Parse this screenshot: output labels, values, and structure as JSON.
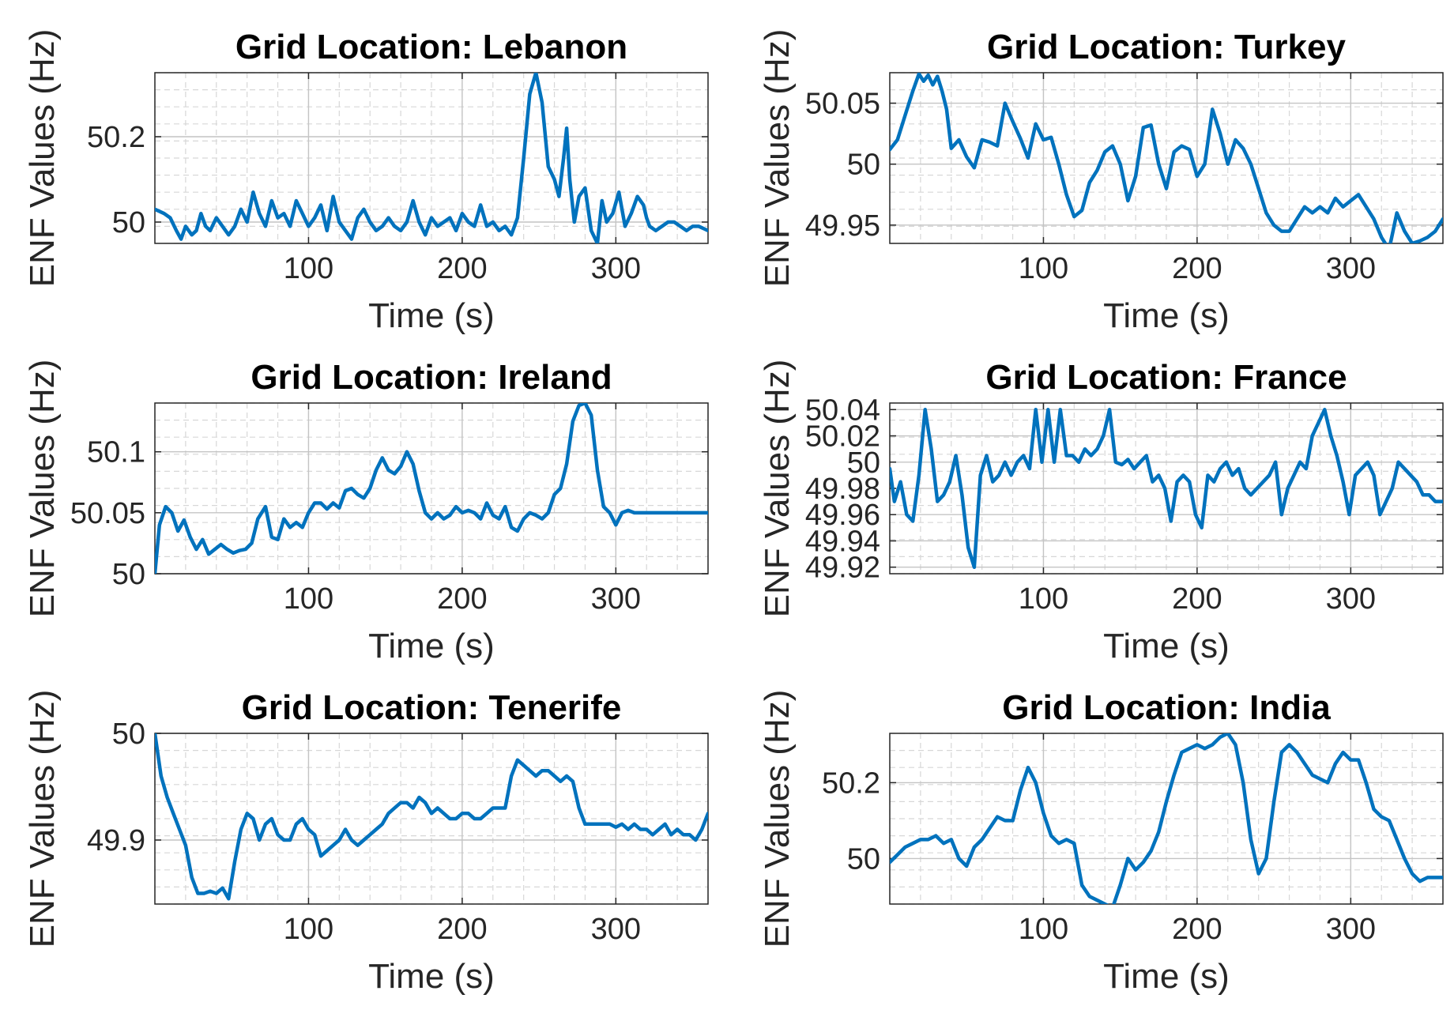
{
  "colors": {
    "line": "#0072BD",
    "grid": "#d7d7d7",
    "axis": "#262626"
  },
  "chart_data": [
    {
      "type": "line",
      "title": "Grid Location: Lebanon",
      "xlabel": "Time (s)",
      "ylabel": "ENF Values (Hz)",
      "xlim": [
        0,
        360
      ],
      "ylim": [
        49.95,
        50.35
      ],
      "xticks": [
        100,
        200,
        300
      ],
      "xtick_labels": [
        "100",
        "200",
        "300"
      ],
      "yticks": [
        50,
        50.2
      ],
      "ytick_labels": [
        "50",
        "50.2"
      ],
      "grid": true,
      "x": [
        0,
        6,
        10,
        14,
        17,
        20,
        24,
        27,
        30,
        33,
        36,
        40,
        44,
        48,
        52,
        56,
        60,
        64,
        68,
        72,
        76,
        80,
        84,
        88,
        92,
        96,
        100,
        104,
        108,
        112,
        116,
        120,
        124,
        128,
        132,
        136,
        140,
        144,
        148,
        152,
        156,
        160,
        164,
        168,
        172,
        176,
        180,
        184,
        188,
        192,
        196,
        200,
        204,
        208,
        212,
        216,
        220,
        224,
        228,
        232,
        236,
        240,
        244,
        248,
        252,
        256,
        260,
        263,
        266,
        268,
        270,
        273,
        276,
        280,
        284,
        288,
        291,
        294,
        298,
        302,
        306,
        310,
        314,
        318,
        320,
        322,
        326,
        330,
        334,
        338,
        342,
        346,
        350,
        354,
        360
      ],
      "values": [
        50.03,
        50.02,
        50.01,
        49.98,
        49.96,
        49.99,
        49.97,
        49.98,
        50.02,
        49.99,
        49.98,
        50.01,
        49.99,
        49.97,
        49.99,
        50.03,
        50.0,
        50.07,
        50.02,
        49.99,
        50.05,
        50.01,
        50.02,
        49.99,
        50.05,
        50.02,
        49.99,
        50.01,
        50.04,
        49.98,
        50.06,
        50.0,
        49.98,
        49.96,
        50.01,
        50.03,
        50.0,
        49.98,
        49.99,
        50.01,
        49.99,
        49.98,
        50.0,
        50.05,
        50.0,
        49.97,
        50.01,
        49.99,
        50.0,
        50.01,
        49.98,
        50.02,
        50.0,
        49.99,
        50.04,
        49.99,
        50.0,
        49.98,
        49.99,
        49.97,
        50.01,
        50.15,
        50.3,
        50.35,
        50.28,
        50.13,
        50.1,
        50.06,
        50.15,
        50.22,
        50.1,
        50.0,
        50.06,
        50.08,
        49.98,
        49.95,
        50.05,
        50.0,
        50.02,
        50.07,
        49.99,
        50.02,
        50.06,
        50.04,
        50.01,
        49.99,
        49.98,
        49.99,
        50.0,
        50.0,
        49.99,
        49.98,
        49.99,
        49.99,
        49.98
      ]
    },
    {
      "type": "line",
      "title": "Grid Location: Turkey",
      "xlabel": "Time (s)",
      "ylabel": "ENF Values (Hz)",
      "xlim": [
        0,
        360
      ],
      "ylim": [
        49.935,
        50.075
      ],
      "xticks": [
        100,
        200,
        300
      ],
      "xtick_labels": [
        "100",
        "200",
        "300"
      ],
      "yticks": [
        49.95,
        50,
        50.05
      ],
      "ytick_labels": [
        "49.95",
        "50",
        "50.05"
      ],
      "grid": true,
      "x": [
        0,
        5,
        10,
        15,
        19,
        22,
        25,
        28,
        31,
        34,
        37,
        40,
        45,
        50,
        55,
        60,
        65,
        70,
        75,
        80,
        85,
        90,
        95,
        100,
        105,
        110,
        115,
        120,
        125,
        130,
        135,
        140,
        145,
        150,
        155,
        160,
        165,
        170,
        175,
        180,
        185,
        190,
        195,
        200,
        205,
        210,
        215,
        220,
        225,
        230,
        235,
        240,
        245,
        250,
        255,
        260,
        265,
        270,
        275,
        280,
        285,
        290,
        295,
        300,
        305,
        310,
        315,
        320,
        325,
        330,
        335,
        340,
        345,
        350,
        355,
        360
      ],
      "values": [
        50.012,
        50.02,
        50.04,
        50.06,
        50.074,
        50.068,
        50.073,
        50.065,
        50.072,
        50.06,
        50.045,
        50.013,
        50.02,
        50.006,
        49.997,
        50.02,
        50.018,
        50.015,
        50.05,
        50.035,
        50.021,
        50.005,
        50.033,
        50.02,
        50.022,
        50.0,
        49.975,
        49.957,
        49.962,
        49.985,
        49.995,
        50.01,
        50.015,
        50.0,
        49.97,
        49.99,
        50.03,
        50.032,
        50.0,
        49.98,
        50.01,
        50.015,
        50.012,
        49.99,
        50.0,
        50.045,
        50.025,
        50.0,
        50.02,
        50.013,
        50.0,
        49.98,
        49.96,
        49.95,
        49.945,
        49.945,
        49.955,
        49.965,
        49.96,
        49.965,
        49.96,
        49.972,
        49.965,
        49.97,
        49.975,
        49.965,
        49.955,
        49.94,
        49.93,
        49.96,
        49.945,
        49.935,
        49.937,
        49.94,
        49.945,
        49.955
      ]
    },
    {
      "type": "line",
      "title": "Grid Location: Ireland",
      "xlabel": "Time (s)",
      "ylabel": "ENF Values (Hz)",
      "xlim": [
        0,
        360
      ],
      "ylim": [
        50.0,
        50.14
      ],
      "xticks": [
        100,
        200,
        300
      ],
      "xtick_labels": [
        "100",
        "200",
        "300"
      ],
      "yticks": [
        50,
        50.05,
        50.1
      ],
      "ytick_labels": [
        "50",
        "50.05",
        "50.1"
      ],
      "grid": true,
      "x": [
        0,
        3,
        7,
        11,
        15,
        19,
        23,
        27,
        31,
        35,
        39,
        43,
        47,
        51,
        55,
        59,
        63,
        67,
        72,
        76,
        80,
        84,
        88,
        92,
        96,
        100,
        104,
        108,
        112,
        116,
        120,
        124,
        128,
        132,
        136,
        140,
        144,
        148,
        152,
        156,
        160,
        164,
        168,
        172,
        176,
        180,
        184,
        188,
        192,
        196,
        200,
        204,
        208,
        212,
        216,
        220,
        224,
        228,
        232,
        236,
        240,
        244,
        248,
        252,
        256,
        260,
        264,
        268,
        272,
        276,
        280,
        284,
        288,
        292,
        296,
        300,
        304,
        308,
        312,
        316,
        320,
        324,
        328,
        332,
        336,
        340,
        344,
        348,
        352,
        356,
        360
      ],
      "values": [
        50.0,
        50.04,
        50.055,
        50.05,
        50.035,
        50.044,
        50.03,
        50.02,
        50.028,
        50.016,
        50.02,
        50.024,
        50.02,
        50.017,
        50.019,
        50.02,
        50.025,
        50.045,
        50.055,
        50.03,
        50.028,
        50.045,
        50.038,
        50.042,
        50.038,
        50.05,
        50.058,
        50.058,
        50.053,
        50.058,
        50.054,
        50.068,
        50.07,
        50.065,
        50.062,
        50.07,
        50.085,
        50.095,
        50.085,
        50.082,
        50.088,
        50.1,
        50.09,
        50.068,
        50.05,
        50.045,
        50.05,
        50.045,
        50.048,
        50.055,
        50.05,
        50.052,
        50.05,
        50.045,
        50.058,
        50.048,
        50.045,
        50.055,
        50.038,
        50.035,
        50.045,
        50.05,
        50.048,
        50.045,
        50.05,
        50.065,
        50.07,
        50.09,
        50.125,
        50.138,
        50.14,
        50.13,
        50.085,
        50.055,
        50.05,
        50.04,
        50.05,
        50.052,
        50.05,
        50.05,
        50.05,
        50.05,
        50.05,
        50.05,
        50.05,
        50.05,
        50.05,
        50.05,
        50.05,
        50.05,
        50.05
      ]
    },
    {
      "type": "line",
      "title": "Grid Location: France",
      "xlabel": "Time (s)",
      "ylabel": "ENF Values (Hz)",
      "xlim": [
        0,
        360
      ],
      "ylim": [
        49.915,
        50.045
      ],
      "xticks": [
        100,
        200,
        300
      ],
      "xtick_labels": [
        "100",
        "200",
        "300"
      ],
      "yticks": [
        49.92,
        49.94,
        49.96,
        49.98,
        50,
        50.02,
        50.04
      ],
      "ytick_labels": [
        "49.92",
        "49.94",
        "49.96",
        "49.98",
        "50",
        "50.02",
        "50.04"
      ],
      "grid": true,
      "x": [
        0,
        3,
        7,
        11,
        15,
        19,
        23,
        27,
        31,
        35,
        39,
        43,
        47,
        51,
        55,
        59,
        63,
        67,
        71,
        75,
        79,
        83,
        87,
        91,
        95,
        99,
        103,
        107,
        111,
        115,
        119,
        123,
        127,
        131,
        135,
        139,
        143,
        147,
        151,
        155,
        159,
        163,
        167,
        171,
        175,
        179,
        183,
        187,
        191,
        195,
        199,
        203,
        207,
        211,
        215,
        219,
        223,
        227,
        231,
        235,
        239,
        243,
        247,
        251,
        255,
        259,
        263,
        267,
        271,
        275,
        279,
        283,
        287,
        291,
        295,
        299,
        303,
        307,
        311,
        315,
        319,
        323,
        327,
        331,
        335,
        339,
        343,
        347,
        351,
        355,
        360
      ],
      "values": [
        49.995,
        49.97,
        49.985,
        49.96,
        49.955,
        49.99,
        50.04,
        50.01,
        49.97,
        49.975,
        49.985,
        50.005,
        49.975,
        49.935,
        49.92,
        49.99,
        50.005,
        49.985,
        49.99,
        50.0,
        49.99,
        50.0,
        50.005,
        49.995,
        50.04,
        50.0,
        50.04,
        50.0,
        50.04,
        50.005,
        50.005,
        50.0,
        50.01,
        50.005,
        50.01,
        50.02,
        50.04,
        50.0,
        49.998,
        50.002,
        49.995,
        50.0,
        50.005,
        49.985,
        49.99,
        49.98,
        49.955,
        49.985,
        49.99,
        49.985,
        49.96,
        49.95,
        49.99,
        49.985,
        49.995,
        50.0,
        49.99,
        49.995,
        49.98,
        49.975,
        49.98,
        49.985,
        49.99,
        50.0,
        49.96,
        49.98,
        49.99,
        50.0,
        49.995,
        50.02,
        50.03,
        50.04,
        50.02,
        50.005,
        49.985,
        49.96,
        49.99,
        49.995,
        50.0,
        49.99,
        49.96,
        49.97,
        49.98,
        50.0,
        49.995,
        49.99,
        49.985,
        49.975,
        49.975,
        49.97,
        49.97
      ]
    },
    {
      "type": "line",
      "title": "Grid Location: Tenerife",
      "xlabel": "Time (s)",
      "ylabel": "ENF Values (Hz)",
      "xlim": [
        0,
        360
      ],
      "ylim": [
        49.84,
        50.0
      ],
      "xticks": [
        100,
        200,
        300
      ],
      "xtick_labels": [
        "100",
        "200",
        "300"
      ],
      "yticks": [
        49.9,
        50
      ],
      "ytick_labels": [
        "49.9",
        "50"
      ],
      "grid": true,
      "x": [
        0,
        4,
        8,
        12,
        16,
        20,
        24,
        28,
        32,
        36,
        40,
        44,
        48,
        52,
        56,
        60,
        64,
        68,
        72,
        76,
        80,
        84,
        88,
        92,
        96,
        100,
        104,
        108,
        112,
        116,
        120,
        124,
        128,
        132,
        136,
        140,
        144,
        148,
        152,
        156,
        160,
        164,
        168,
        172,
        176,
        180,
        184,
        188,
        192,
        196,
        200,
        204,
        208,
        212,
        216,
        220,
        224,
        228,
        232,
        236,
        240,
        244,
        248,
        252,
        256,
        260,
        264,
        268,
        272,
        276,
        280,
        284,
        288,
        292,
        296,
        300,
        304,
        308,
        312,
        316,
        320,
        324,
        328,
        332,
        336,
        340,
        344,
        348,
        352,
        356,
        360
      ],
      "values": [
        50.0,
        49.96,
        49.94,
        49.925,
        49.91,
        49.895,
        49.865,
        49.85,
        49.85,
        49.852,
        49.85,
        49.855,
        49.845,
        49.88,
        49.91,
        49.925,
        49.92,
        49.9,
        49.915,
        49.92,
        49.905,
        49.9,
        49.9,
        49.915,
        49.92,
        49.91,
        49.905,
        49.885,
        49.89,
        49.895,
        49.9,
        49.91,
        49.9,
        49.895,
        49.9,
        49.905,
        49.91,
        49.915,
        49.925,
        49.93,
        49.935,
        49.935,
        49.93,
        49.94,
        49.935,
        49.925,
        49.93,
        49.925,
        49.92,
        49.92,
        49.925,
        49.925,
        49.92,
        49.92,
        49.925,
        49.93,
        49.93,
        49.93,
        49.96,
        49.975,
        49.97,
        49.965,
        49.96,
        49.965,
        49.965,
        49.96,
        49.955,
        49.96,
        49.955,
        49.93,
        49.915,
        49.915,
        49.915,
        49.915,
        49.915,
        49.912,
        49.915,
        49.91,
        49.915,
        49.91,
        49.91,
        49.905,
        49.91,
        49.915,
        49.905,
        49.91,
        49.905,
        49.905,
        49.9,
        49.91,
        49.925
      ]
    },
    {
      "type": "line",
      "title": "Grid Location: India",
      "xlabel": "Time (s)",
      "ylabel": "ENF Values (Hz)",
      "xlim": [
        0,
        360
      ],
      "ylim": [
        49.88,
        50.33
      ],
      "xticks": [
        100,
        200,
        300
      ],
      "xtick_labels": [
        "100",
        "200",
        "300"
      ],
      "yticks": [
        50,
        50.2
      ],
      "ytick_labels": [
        "50",
        "50.2"
      ],
      "grid": true,
      "x": [
        0,
        5,
        10,
        15,
        20,
        25,
        30,
        35,
        40,
        45,
        50,
        55,
        60,
        65,
        70,
        75,
        80,
        85,
        90,
        95,
        100,
        105,
        110,
        115,
        120,
        125,
        130,
        135,
        140,
        145,
        150,
        155,
        160,
        165,
        170,
        175,
        180,
        185,
        190,
        195,
        200,
        205,
        210,
        215,
        220,
        225,
        230,
        235,
        240,
        245,
        250,
        255,
        260,
        265,
        270,
        275,
        280,
        285,
        290,
        295,
        300,
        305,
        310,
        315,
        320,
        325,
        330,
        335,
        340,
        345,
        350,
        355,
        360
      ],
      "values": [
        49.99,
        50.01,
        50.03,
        50.04,
        50.05,
        50.05,
        50.06,
        50.04,
        50.05,
        50.0,
        49.98,
        50.03,
        50.05,
        50.08,
        50.11,
        50.1,
        50.1,
        50.18,
        50.24,
        50.2,
        50.12,
        50.06,
        50.04,
        50.05,
        50.04,
        49.93,
        49.9,
        49.89,
        49.88,
        49.87,
        49.93,
        50.0,
        49.97,
        49.99,
        50.02,
        50.07,
        50.15,
        50.22,
        50.28,
        50.29,
        50.3,
        50.29,
        50.3,
        50.32,
        50.33,
        50.3,
        50.2,
        50.05,
        49.96,
        50.0,
        50.15,
        50.28,
        50.3,
        50.28,
        50.25,
        50.22,
        50.21,
        50.2,
        50.25,
        50.28,
        50.26,
        50.26,
        50.2,
        50.13,
        50.11,
        50.1,
        50.05,
        50.0,
        49.96,
        49.94,
        49.95,
        49.95,
        49.95
      ]
    }
  ]
}
